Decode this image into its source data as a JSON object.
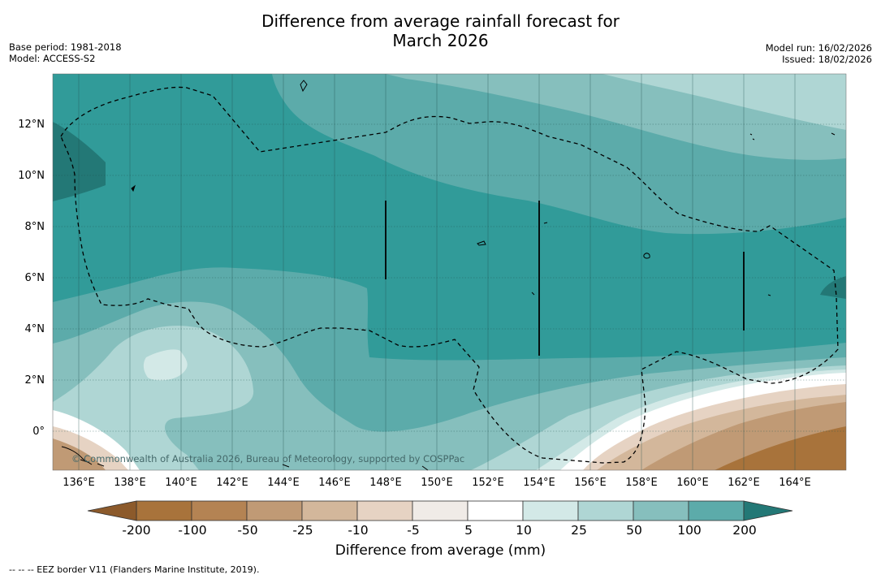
{
  "title_line1": "Difference from average rainfall forecast for",
  "title_line2": "March 2026",
  "meta_left": {
    "base_period": "Base period: 1981-2018",
    "model": "Model: ACCESS-S2"
  },
  "meta_right": {
    "model_run": "Model run: 16/02/2026",
    "issued": "Issued: 18/02/2026"
  },
  "copyright": "© Commonwealth of Australia 2026, Bureau of Meteorology, supported by COSPPac",
  "latitudes": [
    "12°N",
    "10°N",
    "8°N",
    "6°N",
    "4°N",
    "2°N",
    "0°"
  ],
  "longitudes": [
    "136°E",
    "138°E",
    "140°E",
    "142°E",
    "144°E",
    "146°E",
    "148°E",
    "150°E",
    "152°E",
    "154°E",
    "156°E",
    "158°E",
    "160°E",
    "162°E",
    "164°E"
  ],
  "colorbar": {
    "labels": [
      "-200",
      "-100",
      "-50",
      "-25",
      "-10",
      "-5",
      "5",
      "10",
      "25",
      "50",
      "100",
      "200"
    ],
    "colors": [
      "#a8733b",
      "#b48353",
      "#c09a75",
      "#d3b79b",
      "#e6d3c3",
      "#f0ebe7",
      "#ffffff",
      "#d3e9e7",
      "#afd6d4",
      "#86bfbd",
      "#5cabaa",
      "#319b99"
    ],
    "under_color": "#8c5a2b",
    "over_color": "#237876",
    "title": "Difference from average (mm)"
  },
  "footnote": "--  --  -- EEZ border V11 (Flanders Marine Institute, 2019)."
}
